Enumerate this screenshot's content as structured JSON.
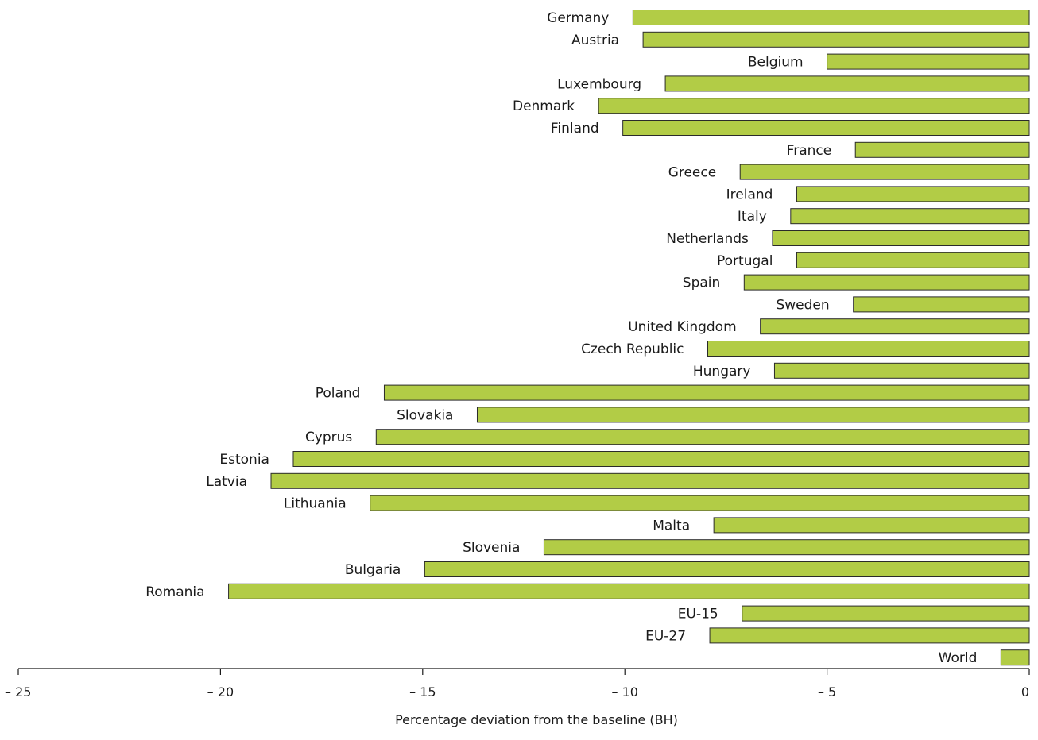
{
  "chart_data": {
    "type": "bar",
    "orientation": "horizontal",
    "categories": [
      "Germany",
      "Austria",
      "Belgium",
      "Luxembourg",
      "Denmark",
      "Finland",
      "France",
      "Greece",
      "Ireland",
      "Italy",
      "Netherlands",
      "Portugal",
      "Spain",
      "Sweden",
      "United Kingdom",
      "Czech Republic",
      "Hungary",
      "Poland",
      "Slovakia",
      "Cyprus",
      "Estonia",
      "Latvia",
      "Lithuania",
      "Malta",
      "Slovenia",
      "Bulgaria",
      "Romania",
      "EU-15",
      "EU-27",
      "World"
    ],
    "values": [
      -9.8,
      -9.55,
      -5.0,
      -9.0,
      -10.65,
      -10.05,
      -4.3,
      -7.15,
      -5.75,
      -5.9,
      -6.35,
      -5.75,
      -7.05,
      -4.35,
      -6.65,
      -7.95,
      -6.3,
      -15.95,
      -13.65,
      -16.15,
      -18.2,
      -18.75,
      -16.3,
      -7.8,
      -12.0,
      -14.95,
      -19.8,
      -7.1,
      -7.9,
      -0.7
    ],
    "xlim": [
      -25,
      0
    ],
    "xticks": [
      -25,
      -20,
      -15,
      -10,
      -5,
      0
    ],
    "xtick_labels": [
      "– 25",
      "– 20",
      "– 15",
      "– 10",
      "– 5",
      "0"
    ],
    "xlabel": "Percentage deviation from the baseline (BH)",
    "ylabel": "",
    "title": "",
    "grid": false,
    "legend": "none",
    "bar_color": "#b2cc46",
    "bar_edge_color": "#2a2a2a"
  }
}
